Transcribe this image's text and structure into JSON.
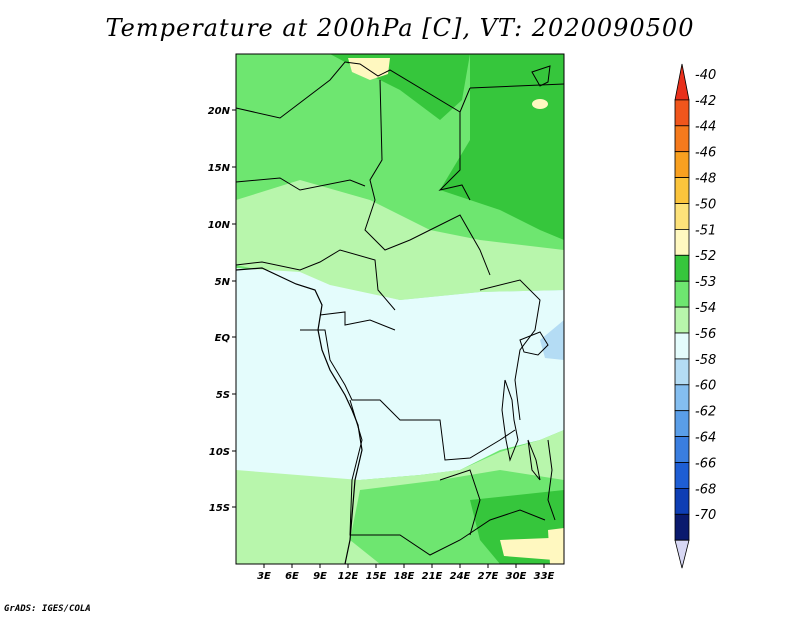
{
  "title": "Temperature at 200hPa [C], VT: 2020090500",
  "credit": "GrADS: IGES/COLA",
  "map": {
    "lon_labels": [
      "3E",
      "6E",
      "9E",
      "12E",
      "15E",
      "18E",
      "21E",
      "24E",
      "27E",
      "30E",
      "33E"
    ],
    "lat_labels": [
      "20N",
      "15N",
      "10N",
      "5N",
      "EQ",
      "5S",
      "10S",
      "15S"
    ]
  },
  "colorbar": {
    "labels": [
      "-40",
      "-42",
      "-44",
      "-46",
      "-48",
      "-50",
      "-51",
      "-52",
      "-53",
      "-54",
      "-56",
      "-58",
      "-60",
      "-62",
      "-64",
      "-66",
      "-68",
      "-70"
    ],
    "colors": [
      "#e8301c",
      "#f0561c",
      "#f57a1c",
      "#f8a020",
      "#fbc43c",
      "#fde27a",
      "#fff8c0",
      "#36c63c",
      "#6ee670",
      "#b8f6ac",
      "#e4fcfc",
      "#b4dcf4",
      "#84bef0",
      "#5a9ee8",
      "#3a7ee0",
      "#1e5ed4",
      "#0e3eb4",
      "#0a1a6e",
      "#d8d8f4"
    ]
  }
}
